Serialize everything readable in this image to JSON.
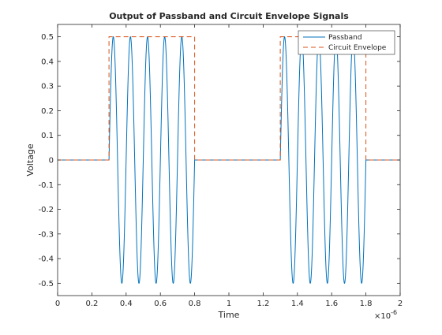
{
  "chart_data": {
    "type": "line",
    "title": "Output of Passband and Circuit Envelope Signals",
    "xlabel": "Time",
    "ylabel": "Voltage",
    "x_exponent_prefix": "×10",
    "x_exponent_power": "-6",
    "x_scale": 1e-06,
    "xlim": [
      0,
      2
    ],
    "ylim": [
      -0.55,
      0.55
    ],
    "xticks": [
      "0",
      "0.2",
      "0.4",
      "0.6",
      "0.8",
      "1",
      "1.2",
      "1.4",
      "1.6",
      "1.8",
      "2"
    ],
    "yticks": [
      "-0.5",
      "-0.4",
      "-0.3",
      "-0.2",
      "-0.1",
      "0",
      "0.1",
      "0.2",
      "0.3",
      "0.4",
      "0.5"
    ],
    "grid": false,
    "legend_location": "top-right",
    "series": [
      {
        "name": "Passband",
        "style": "solid",
        "color": "#0072bd",
        "amplitude": 0.5,
        "carrier_frequency_mhz": 10,
        "on_intervals": [
          [
            0.3,
            0.8
          ],
          [
            1.3,
            1.8
          ]
        ]
      },
      {
        "name": "Circuit Envelope",
        "style": "dashed",
        "color": "#d95319",
        "x": [
          0,
          0.3,
          0.3,
          0.8,
          0.8,
          1.3,
          1.3,
          1.8,
          1.8,
          2
        ],
        "y": [
          0,
          0,
          0.5,
          0.5,
          0,
          0,
          0.5,
          0.5,
          0,
          0
        ]
      }
    ]
  }
}
